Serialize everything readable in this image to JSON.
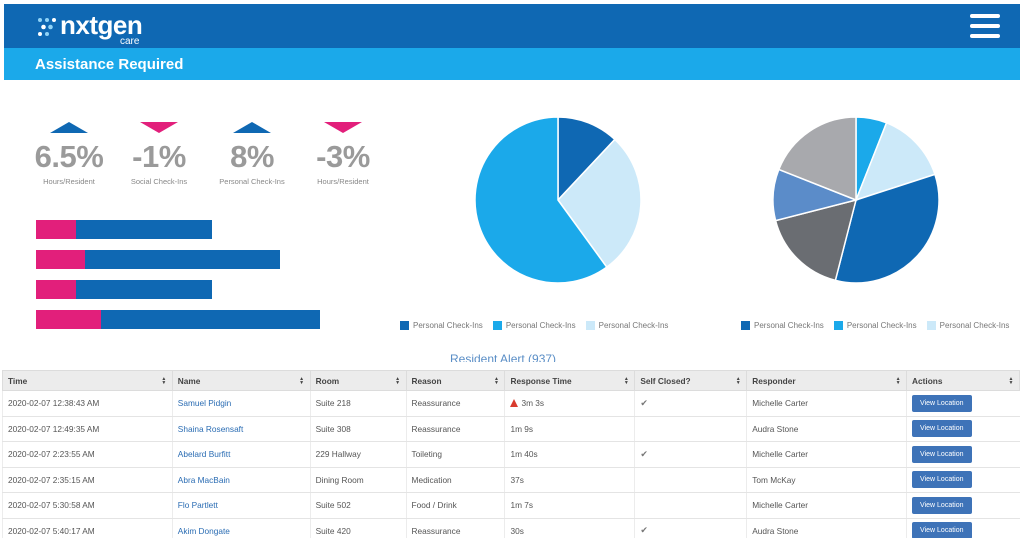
{
  "header": {
    "logo_word": "nxtgen",
    "logo_sub": "care",
    "menu_icon": "hamburger-menu-icon"
  },
  "page_title": "Assistance Required",
  "stats": [
    {
      "value": "6.5%",
      "label": "Hours/Resident",
      "trend": "up"
    },
    {
      "value": "-1%",
      "label": "Social Check-Ins",
      "trend": "down"
    },
    {
      "value": "8%",
      "label": "Personal Check-Ins",
      "trend": "up"
    },
    {
      "value": "-3%",
      "label": "Hours/Resident",
      "trend": "down"
    }
  ],
  "colors": {
    "dark_blue": "#0f68b3",
    "light_blue": "#1ba9ea",
    "pale_blue": "#cce9f9",
    "pink": "#e21f7b",
    "gray": "#a8a9ad",
    "dark_gray": "#6a6d72",
    "mid_blue": "#5b8cc9"
  },
  "bar_chart": {
    "rows": [
      {
        "pink_fraction": 0.23,
        "total_fraction": 0.62
      },
      {
        "pink_fraction": 0.2,
        "total_fraction": 0.86
      },
      {
        "pink_fraction": 0.23,
        "total_fraction": 0.62
      },
      {
        "pink_fraction": 0.23,
        "total_fraction": 1.0
      }
    ]
  },
  "chart_data": [
    {
      "type": "pie",
      "slices": [
        {
          "value": 12,
          "color": "#0f68b3"
        },
        {
          "value": 28,
          "color": "#cce9f9"
        },
        {
          "value": 60,
          "color": "#1ba9ea"
        }
      ],
      "legend": [
        "Personal Check-Ins",
        "Personal Check-Ins",
        "Personal Check-Ins"
      ],
      "legend_colors": [
        "#0f68b3",
        "#1ba9ea",
        "#cce9f9"
      ]
    },
    {
      "type": "pie",
      "slices": [
        {
          "value": 6,
          "color": "#1ba9ea"
        },
        {
          "value": 14,
          "color": "#cce9f9"
        },
        {
          "value": 34,
          "color": "#0f68b3"
        },
        {
          "value": 17,
          "color": "#6a6d72"
        },
        {
          "value": 10,
          "color": "#5b8cc9"
        },
        {
          "value": 19,
          "color": "#a8a9ad"
        }
      ],
      "legend": [
        "Personal Check-Ins",
        "Personal Check-Ins",
        "Personal Check-Ins"
      ],
      "legend_colors": [
        "#0f68b3",
        "#1ba9ea",
        "#cce9f9"
      ]
    }
  ],
  "table": {
    "title": "Resident Alert (937)",
    "columns": [
      "Time",
      "Name",
      "Room",
      "Reason",
      "Response Time",
      "Self Closed?",
      "Responder",
      "Actions"
    ],
    "action_label": "View Location",
    "rows": [
      {
        "time": "2020-02-07 12:38:43 AM",
        "name": "Samuel Pidgin",
        "room": "Suite 218",
        "reason": "Reassurance",
        "response": "3m 3s",
        "warn": true,
        "closed": true,
        "responder": "Michelle Carter"
      },
      {
        "time": "2020-02-07 12:49:35 AM",
        "name": "Shaina Rosensaft",
        "room": "Suite 308",
        "reason": "Reassurance",
        "response": "1m 9s",
        "warn": false,
        "closed": false,
        "responder": "Audra Stone"
      },
      {
        "time": "2020-02-07 2:23:55 AM",
        "name": "Abelard Burfitt",
        "room": "229 Hallway",
        "reason": "Toileting",
        "response": "1m 40s",
        "warn": false,
        "closed": true,
        "responder": "Michelle Carter"
      },
      {
        "time": "2020-02-07 2:35:15 AM",
        "name": "Abra MacBain",
        "room": "Dining Room",
        "reason": "Medication",
        "response": "37s",
        "warn": false,
        "closed": false,
        "responder": "Tom McKay"
      },
      {
        "time": "2020-02-07 5:30:58 AM",
        "name": "Flo Partlett",
        "room": "Suite 502",
        "reason": "Food / Drink",
        "response": "1m 7s",
        "warn": false,
        "closed": false,
        "responder": "Michelle Carter"
      },
      {
        "time": "2020-02-07 5:40:17 AM",
        "name": "Akim Dongate",
        "room": "Suite 420",
        "reason": "Reassurance",
        "response": "30s",
        "warn": false,
        "closed": true,
        "responder": "Audra Stone"
      }
    ]
  }
}
